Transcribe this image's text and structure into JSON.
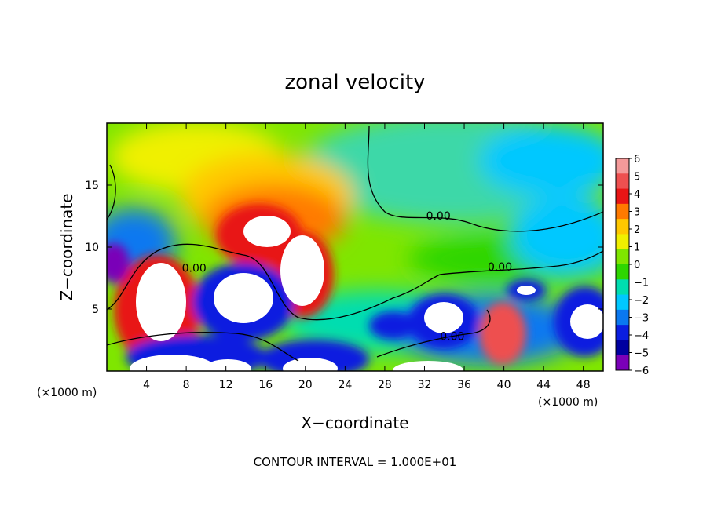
{
  "chart_data": {
    "type": "heatmap",
    "title": "zonal velocity",
    "xlabel": "X−coordinate",
    "ylabel": "Z−coordinate",
    "x_units_left": "(×1000 m)",
    "x_units_right": "(×1000 m)",
    "xlim": [
      0,
      50
    ],
    "ylim": [
      0,
      20
    ],
    "x_ticks": [
      4,
      8,
      12,
      16,
      20,
      24,
      28,
      32,
      36,
      40,
      44,
      48
    ],
    "x_tick_labels": [
      "4",
      "8",
      "12",
      "16",
      "20",
      "24",
      "28",
      "32",
      "36",
      "40",
      "44",
      "48"
    ],
    "y_ticks": [
      5,
      10,
      15
    ],
    "y_tick_labels": [
      "5",
      "10",
      "15"
    ],
    "colorbar": {
      "min": -6,
      "max": 6,
      "levels": [
        6,
        5,
        4,
        3,
        2,
        1,
        0,
        -1,
        -2,
        -3,
        -4,
        -5,
        -6
      ],
      "labels": [
        "6",
        "5",
        "4",
        "3",
        "2",
        "1",
        "0",
        "−1",
        "−2",
        "−3",
        "−4",
        "−5",
        "−6"
      ],
      "colors": [
        "#f49a9a",
        "#ee5050",
        "#e81515",
        "#ff7a00",
        "#ffc800",
        "#f0f000",
        "#7fe600",
        "#2ed600",
        "#00ddb0",
        "#00c8ff",
        "#0a78f0",
        "#0a1ee0",
        "#0000a0",
        "#7a00b8"
      ]
    },
    "contour_labels": [
      {
        "text": "0.00",
        "x": 8.8,
        "z": 8.0
      },
      {
        "text": "0.00",
        "x": 33.4,
        "z": 12.2
      },
      {
        "text": "0.00",
        "x": 39.6,
        "z": 8.1
      },
      {
        "text": "0.00",
        "x": 34.8,
        "z": 2.5
      }
    ],
    "contour_interval_text": "CONTOUR INTERVAL = 1.000E+01"
  }
}
